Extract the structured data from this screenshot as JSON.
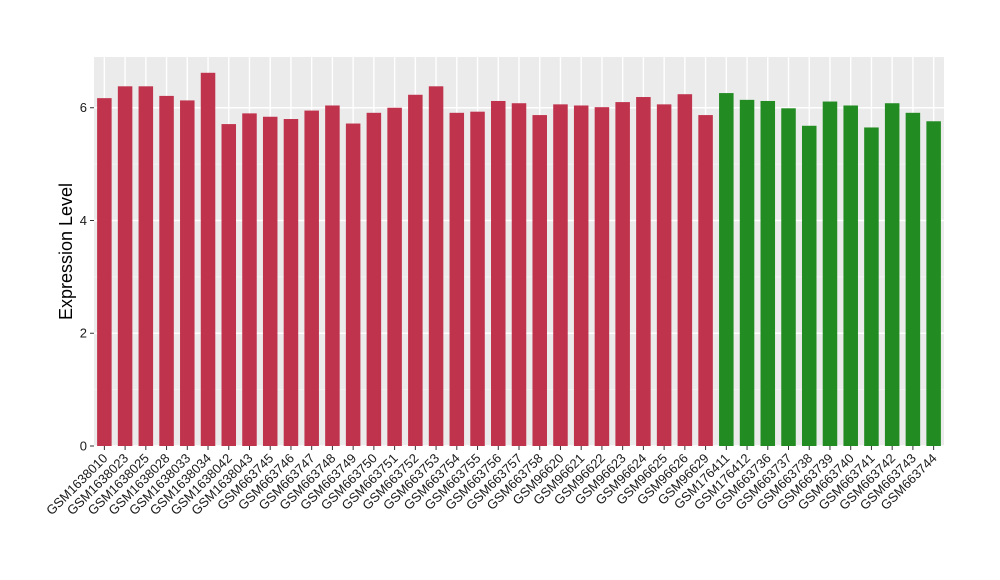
{
  "chart_data": {
    "type": "bar",
    "title": "",
    "xlabel": "",
    "ylabel": "Expression Level",
    "ylim": [
      0,
      6.9
    ],
    "yticks": [
      0,
      2,
      4,
      6
    ],
    "grid": true,
    "legend": "none",
    "colors": {
      "panel_background": "#ebebeb",
      "grid_major": "#ffffff",
      "grid_minor": "#f5f5f5",
      "group_a": "#c0334d",
      "group_b": "#228b22"
    },
    "categories": [
      "GSM1638010",
      "GSM1638023",
      "GSM1638025",
      "GSM1638028",
      "GSM1638033",
      "GSM1638034",
      "GSM1638042",
      "GSM1638043",
      "GSM663745",
      "GSM663746",
      "GSM663747",
      "GSM663748",
      "GSM663749",
      "GSM663750",
      "GSM663751",
      "GSM663752",
      "GSM663753",
      "GSM663754",
      "GSM663755",
      "GSM663756",
      "GSM663757",
      "GSM663758",
      "GSM96620",
      "GSM96621",
      "GSM96622",
      "GSM96623",
      "GSM96624",
      "GSM96625",
      "GSM96626",
      "GSM96629",
      "GSM176411",
      "GSM176412",
      "GSM663736",
      "GSM663737",
      "GSM663738",
      "GSM663739",
      "GSM663740",
      "GSM663741",
      "GSM663742",
      "GSM663743",
      "GSM663744"
    ],
    "values": [
      6.17,
      6.38,
      6.38,
      6.21,
      6.13,
      6.62,
      5.71,
      5.9,
      5.84,
      5.8,
      5.95,
      6.04,
      5.72,
      5.91,
      6.0,
      6.23,
      6.38,
      5.91,
      5.93,
      6.12,
      6.08,
      5.87,
      6.06,
      6.04,
      6.01,
      6.1,
      6.19,
      6.06,
      6.24,
      5.87,
      6.26,
      6.14,
      6.12,
      5.99,
      5.68,
      6.11,
      6.04,
      5.65,
      6.08,
      5.91,
      5.76
    ],
    "groups": [
      "a",
      "a",
      "a",
      "a",
      "a",
      "a",
      "a",
      "a",
      "a",
      "a",
      "a",
      "a",
      "a",
      "a",
      "a",
      "a",
      "a",
      "a",
      "a",
      "a",
      "a",
      "a",
      "a",
      "a",
      "a",
      "a",
      "a",
      "a",
      "a",
      "a",
      "b",
      "b",
      "b",
      "b",
      "b",
      "b",
      "b",
      "b",
      "b",
      "b",
      "b"
    ]
  }
}
